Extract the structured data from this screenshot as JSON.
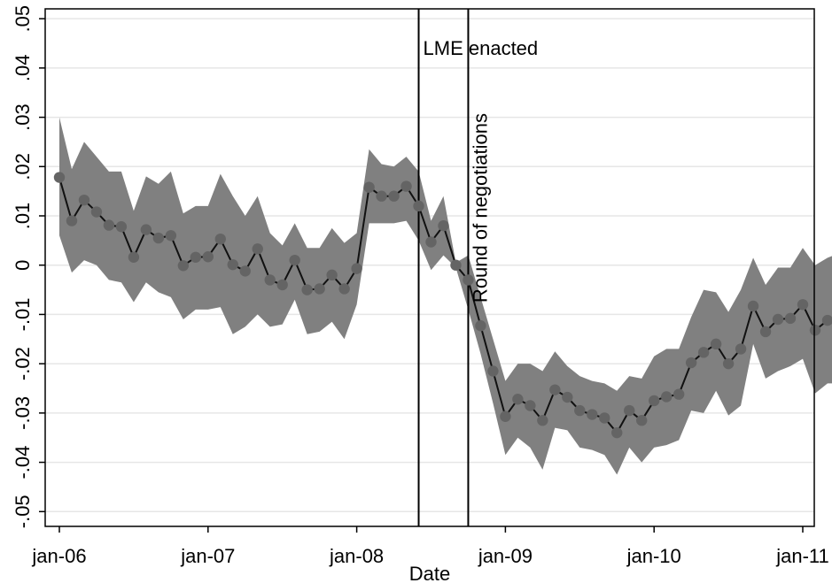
{
  "chart_data": {
    "type": "line",
    "title": "",
    "xlabel": "Date",
    "ylabel": "",
    "x_ticks": [
      "jan-06",
      "jan-07",
      "jan-08",
      "jan-09",
      "jan-10",
      "jan-11"
    ],
    "y_ticks": [
      ".05",
      ".04",
      ".03",
      ".02",
      ".01",
      "0",
      "-.01",
      "-.02",
      "-.03",
      "-.04",
      "-.05"
    ],
    "xlim": [
      "2006-01",
      "2011-01"
    ],
    "ylim": [
      -0.053,
      0.052
    ],
    "grid": "horizontal",
    "x": [
      "2006-01",
      "2006-02",
      "2006-03",
      "2006-04",
      "2006-05",
      "2006-06",
      "2006-07",
      "2006-08",
      "2006-09",
      "2006-10",
      "2006-11",
      "2006-12",
      "2007-01",
      "2007-02",
      "2007-03",
      "2007-04",
      "2007-05",
      "2007-06",
      "2007-07",
      "2007-08",
      "2007-09",
      "2007-10",
      "2007-11",
      "2007-12",
      "2008-01",
      "2008-02",
      "2008-03",
      "2008-04",
      "2008-05",
      "2008-06",
      "2008-07",
      "2008-08",
      "2008-09",
      "2008-10",
      "2008-11",
      "2008-12",
      "2009-01",
      "2009-02",
      "2009-03",
      "2009-04",
      "2009-05",
      "2009-06",
      "2009-07",
      "2009-08",
      "2009-09",
      "2009-10",
      "2009-11",
      "2009-12",
      "2010-01",
      "2010-02",
      "2010-03",
      "2010-04",
      "2010-05",
      "2010-06",
      "2010-07",
      "2010-08",
      "2010-09",
      "2010-10",
      "2010-11",
      "2010-12"
    ],
    "series": [
      {
        "values": [
          0.0178,
          0.009,
          0.0132,
          0.0108,
          0.0081,
          0.0078,
          0.0016,
          0.0072,
          0.0055,
          0.006,
          -0.0001,
          0.0016,
          0.0017,
          0.0053,
          0.0001,
          -0.0012,
          0.0033,
          -0.003,
          -0.004,
          0.001,
          -0.005,
          -0.0048,
          -0.002,
          -0.0048,
          -0.0007,
          0.0158,
          0.014,
          0.014,
          0.016,
          0.012,
          0.0047,
          0.008,
          0.0,
          -0.003,
          -0.0123,
          -0.0215,
          -0.0307,
          -0.0272,
          -0.0285,
          -0.0315,
          -0.0253,
          -0.0268,
          -0.0295,
          -0.0303,
          -0.031,
          -0.034,
          -0.0295,
          -0.0315,
          -0.0275,
          -0.0267,
          -0.0262,
          -0.0198,
          -0.0177,
          -0.016,
          -0.02,
          -0.017,
          -0.0083,
          -0.0135,
          -0.011,
          -0.0108
        ]
      },
      {
        "values_tail": [
          -0.008,
          -0.0132,
          -0.0112,
          -0.011,
          -0.0117
        ]
      }
    ],
    "ci_lower": [
      0.006,
      -0.0015,
      0.001,
      0.0,
      -0.003,
      -0.0035,
      -0.0075,
      -0.0035,
      -0.0055,
      -0.0065,
      -0.011,
      -0.009,
      -0.009,
      -0.0085,
      -0.014,
      -0.0125,
      -0.01,
      -0.0125,
      -0.012,
      -0.007,
      -0.014,
      -0.0135,
      -0.0115,
      -0.015,
      -0.008,
      0.0085,
      0.0085,
      0.0085,
      0.009,
      0.005,
      -0.001,
      0.002,
      -0.0005,
      -0.009,
      -0.018,
      -0.028,
      -0.0385,
      -0.035,
      -0.037,
      -0.0415,
      -0.033,
      -0.0335,
      -0.037,
      -0.0375,
      -0.0385,
      -0.0425,
      -0.037,
      -0.04,
      -0.037,
      -0.0365,
      -0.0355,
      -0.0295,
      -0.03,
      -0.0255,
      -0.0305,
      -0.0285,
      -0.016,
      -0.023,
      -0.0215,
      -0.0205
    ],
    "ci_upper": [
      0.03,
      0.0195,
      0.025,
      0.022,
      0.019,
      0.019,
      0.011,
      0.018,
      0.0165,
      0.019,
      0.0105,
      0.012,
      0.012,
      0.0185,
      0.014,
      0.01,
      0.014,
      0.0065,
      0.004,
      0.0085,
      0.0035,
      0.0035,
      0.0075,
      0.0045,
      0.0065,
      0.0235,
      0.0205,
      0.02,
      0.022,
      0.019,
      0.009,
      0.014,
      0.0005,
      0.002,
      -0.0065,
      -0.015,
      -0.0235,
      -0.02,
      -0.02,
      -0.0215,
      -0.0175,
      -0.0205,
      -0.0225,
      -0.0235,
      -0.024,
      -0.0255,
      -0.0225,
      -0.023,
      -0.0185,
      -0.017,
      -0.017,
      -0.0105,
      -0.005,
      -0.0055,
      -0.0095,
      -0.005,
      0.0015,
      -0.004,
      -0.0005,
      -0.0005
    ],
    "ci_tail_lower": [
      -0.019,
      -0.026,
      -0.024,
      -0.024,
      -0.0245
    ],
    "ci_tail_upper": [
      0.0035,
      0.0,
      0.0015,
      0.0025,
      0.002
    ],
    "vertical_lines": [
      {
        "x": "2008-06",
        "label": "LME enacted"
      },
      {
        "x": "2008-10",
        "label": "Round of negotiations"
      }
    ]
  },
  "colors": {
    "ci_band": "#808080",
    "line": "#111111",
    "marker": "#646464",
    "grid": "#e6e6e6",
    "axis": "#000000"
  }
}
